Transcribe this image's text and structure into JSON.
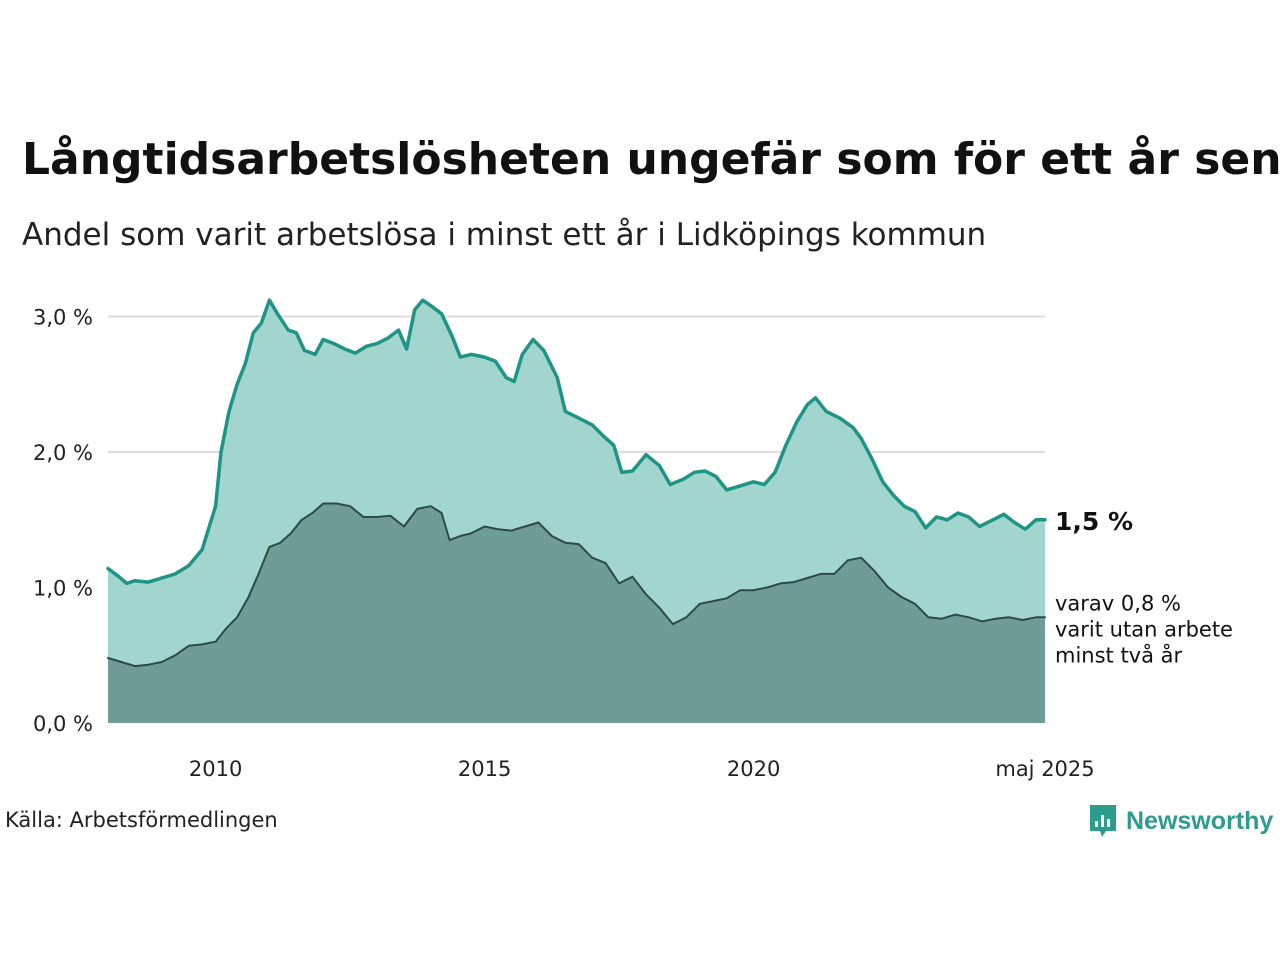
{
  "title": "Långtidsarbetslösheten ungefär som för ett år sen",
  "subtitle": "Andel som varit arbetslösa i minst ett år i Lidköpings kommun",
  "source": "Källa: Arbetsförmedlingen",
  "brand": {
    "name": "Newsworthy",
    "icon": "newsworthy-logo-icon",
    "color": "#2e9c8c"
  },
  "chart_data": {
    "type": "area",
    "title": "Långtidsarbetslösheten ungefär som för ett år sen",
    "subtitle": "Andel som varit arbetslösa i minst ett år i Lidköpings kommun",
    "xlabel": "",
    "ylabel": "",
    "xlim": [
      2008.0,
      2025.4167
    ],
    "ylim": [
      0,
      3.2
    ],
    "yticks": [
      0.0,
      1.0,
      2.0,
      3.0
    ],
    "ytick_labels": [
      "0,0 %",
      "1,0 %",
      "2,0 %",
      "3,0 %"
    ],
    "xticks": [
      2010,
      2015,
      2020,
      2025.4167
    ],
    "xtick_labels": [
      "2010",
      "2015",
      "2020",
      "maj 2025"
    ],
    "grid": "horizontal",
    "colors": {
      "total_line": "#1e9485",
      "total_fill": "#a3d5cf",
      "twoyear_line": "#2c4b45",
      "twoyear_fill": "#6f9d95",
      "gridline": "#dddddd"
    },
    "annotations": {
      "total_end": "1,5 %",
      "twoyear_end": [
        "varav 0,8 %",
        "varit utan arbete",
        "minst två år"
      ]
    },
    "series": [
      {
        "name": "varit arbetslösa i minst ett år",
        "points": [
          [
            2008.0,
            1.14
          ],
          [
            2008.2,
            1.08
          ],
          [
            2008.35,
            1.03
          ],
          [
            2008.5,
            1.05
          ],
          [
            2008.75,
            1.04
          ],
          [
            2009.0,
            1.07
          ],
          [
            2009.25,
            1.1
          ],
          [
            2009.5,
            1.16
          ],
          [
            2009.75,
            1.28
          ],
          [
            2010.0,
            1.6
          ],
          [
            2010.1,
            2.0
          ],
          [
            2010.25,
            2.3
          ],
          [
            2010.4,
            2.5
          ],
          [
            2010.55,
            2.65
          ],
          [
            2010.7,
            2.88
          ],
          [
            2010.85,
            2.95
          ],
          [
            2011.0,
            3.12
          ],
          [
            2011.15,
            3.02
          ],
          [
            2011.35,
            2.9
          ],
          [
            2011.5,
            2.88
          ],
          [
            2011.65,
            2.75
          ],
          [
            2011.85,
            2.72
          ],
          [
            2012.0,
            2.83
          ],
          [
            2012.2,
            2.8
          ],
          [
            2012.4,
            2.76
          ],
          [
            2012.6,
            2.73
          ],
          [
            2012.8,
            2.78
          ],
          [
            2013.0,
            2.8
          ],
          [
            2013.2,
            2.84
          ],
          [
            2013.4,
            2.9
          ],
          [
            2013.55,
            2.76
          ],
          [
            2013.7,
            3.05
          ],
          [
            2013.85,
            3.12
          ],
          [
            2014.0,
            3.08
          ],
          [
            2014.2,
            3.02
          ],
          [
            2014.4,
            2.85
          ],
          [
            2014.55,
            2.7
          ],
          [
            2014.75,
            2.72
          ],
          [
            2015.0,
            2.7
          ],
          [
            2015.2,
            2.67
          ],
          [
            2015.4,
            2.55
          ],
          [
            2015.55,
            2.52
          ],
          [
            2015.7,
            2.72
          ],
          [
            2015.9,
            2.83
          ],
          [
            2016.1,
            2.75
          ],
          [
            2016.35,
            2.55
          ],
          [
            2016.5,
            2.3
          ],
          [
            2016.75,
            2.25
          ],
          [
            2017.0,
            2.2
          ],
          [
            2017.2,
            2.12
          ],
          [
            2017.4,
            2.05
          ],
          [
            2017.55,
            1.85
          ],
          [
            2017.75,
            1.86
          ],
          [
            2018.0,
            1.98
          ],
          [
            2018.25,
            1.9
          ],
          [
            2018.45,
            1.76
          ],
          [
            2018.7,
            1.8
          ],
          [
            2018.9,
            1.85
          ],
          [
            2019.1,
            1.86
          ],
          [
            2019.3,
            1.82
          ],
          [
            2019.5,
            1.72
          ],
          [
            2019.75,
            1.75
          ],
          [
            2020.0,
            1.78
          ],
          [
            2020.2,
            1.76
          ],
          [
            2020.4,
            1.85
          ],
          [
            2020.6,
            2.05
          ],
          [
            2020.8,
            2.22
          ],
          [
            2021.0,
            2.35
          ],
          [
            2021.15,
            2.4
          ],
          [
            2021.35,
            2.3
          ],
          [
            2021.6,
            2.25
          ],
          [
            2021.85,
            2.18
          ],
          [
            2022.0,
            2.1
          ],
          [
            2022.2,
            1.95
          ],
          [
            2022.4,
            1.78
          ],
          [
            2022.6,
            1.68
          ],
          [
            2022.8,
            1.6
          ],
          [
            2023.0,
            1.56
          ],
          [
            2023.2,
            1.44
          ],
          [
            2023.4,
            1.52
          ],
          [
            2023.6,
            1.5
          ],
          [
            2023.8,
            1.55
          ],
          [
            2024.0,
            1.52
          ],
          [
            2024.2,
            1.45
          ],
          [
            2024.45,
            1.5
          ],
          [
            2024.65,
            1.54
          ],
          [
            2024.85,
            1.48
          ],
          [
            2025.05,
            1.43
          ],
          [
            2025.25,
            1.5
          ],
          [
            2025.4167,
            1.5
          ]
        ]
      },
      {
        "name": "varit utan arbete minst två år",
        "points": [
          [
            2008.0,
            0.48
          ],
          [
            2008.25,
            0.45
          ],
          [
            2008.5,
            0.42
          ],
          [
            2008.75,
            0.43
          ],
          [
            2009.0,
            0.45
          ],
          [
            2009.25,
            0.5
          ],
          [
            2009.5,
            0.57
          ],
          [
            2009.75,
            0.58
          ],
          [
            2010.0,
            0.6
          ],
          [
            2010.2,
            0.7
          ],
          [
            2010.4,
            0.78
          ],
          [
            2010.6,
            0.92
          ],
          [
            2010.8,
            1.1
          ],
          [
            2011.0,
            1.3
          ],
          [
            2011.2,
            1.33
          ],
          [
            2011.4,
            1.4
          ],
          [
            2011.6,
            1.5
          ],
          [
            2011.8,
            1.55
          ],
          [
            2012.0,
            1.62
          ],
          [
            2012.25,
            1.62
          ],
          [
            2012.5,
            1.6
          ],
          [
            2012.75,
            1.52
          ],
          [
            2013.0,
            1.52
          ],
          [
            2013.25,
            1.53
          ],
          [
            2013.5,
            1.45
          ],
          [
            2013.75,
            1.58
          ],
          [
            2014.0,
            1.6
          ],
          [
            2014.2,
            1.55
          ],
          [
            2014.35,
            1.35
          ],
          [
            2014.55,
            1.38
          ],
          [
            2014.75,
            1.4
          ],
          [
            2015.0,
            1.45
          ],
          [
            2015.25,
            1.43
          ],
          [
            2015.5,
            1.42
          ],
          [
            2015.75,
            1.45
          ],
          [
            2016.0,
            1.48
          ],
          [
            2016.25,
            1.38
          ],
          [
            2016.5,
            1.33
          ],
          [
            2016.75,
            1.32
          ],
          [
            2017.0,
            1.22
          ],
          [
            2017.25,
            1.18
          ],
          [
            2017.5,
            1.03
          ],
          [
            2017.75,
            1.08
          ],
          [
            2018.0,
            0.95
          ],
          [
            2018.25,
            0.85
          ],
          [
            2018.5,
            0.73
          ],
          [
            2018.75,
            0.78
          ],
          [
            2019.0,
            0.88
          ],
          [
            2019.25,
            0.9
          ],
          [
            2019.5,
            0.92
          ],
          [
            2019.75,
            0.98
          ],
          [
            2020.0,
            0.98
          ],
          [
            2020.25,
            1.0
          ],
          [
            2020.5,
            1.03
          ],
          [
            2020.75,
            1.04
          ],
          [
            2021.0,
            1.07
          ],
          [
            2021.25,
            1.1
          ],
          [
            2021.5,
            1.1
          ],
          [
            2021.75,
            1.2
          ],
          [
            2022.0,
            1.22
          ],
          [
            2022.25,
            1.12
          ],
          [
            2022.5,
            1.0
          ],
          [
            2022.75,
            0.93
          ],
          [
            2023.0,
            0.88
          ],
          [
            2023.25,
            0.78
          ],
          [
            2023.5,
            0.77
          ],
          [
            2023.75,
            0.8
          ],
          [
            2024.0,
            0.78
          ],
          [
            2024.25,
            0.75
          ],
          [
            2024.5,
            0.77
          ],
          [
            2024.75,
            0.78
          ],
          [
            2025.0,
            0.76
          ],
          [
            2025.25,
            0.78
          ],
          [
            2025.4167,
            0.78
          ]
        ]
      }
    ]
  }
}
